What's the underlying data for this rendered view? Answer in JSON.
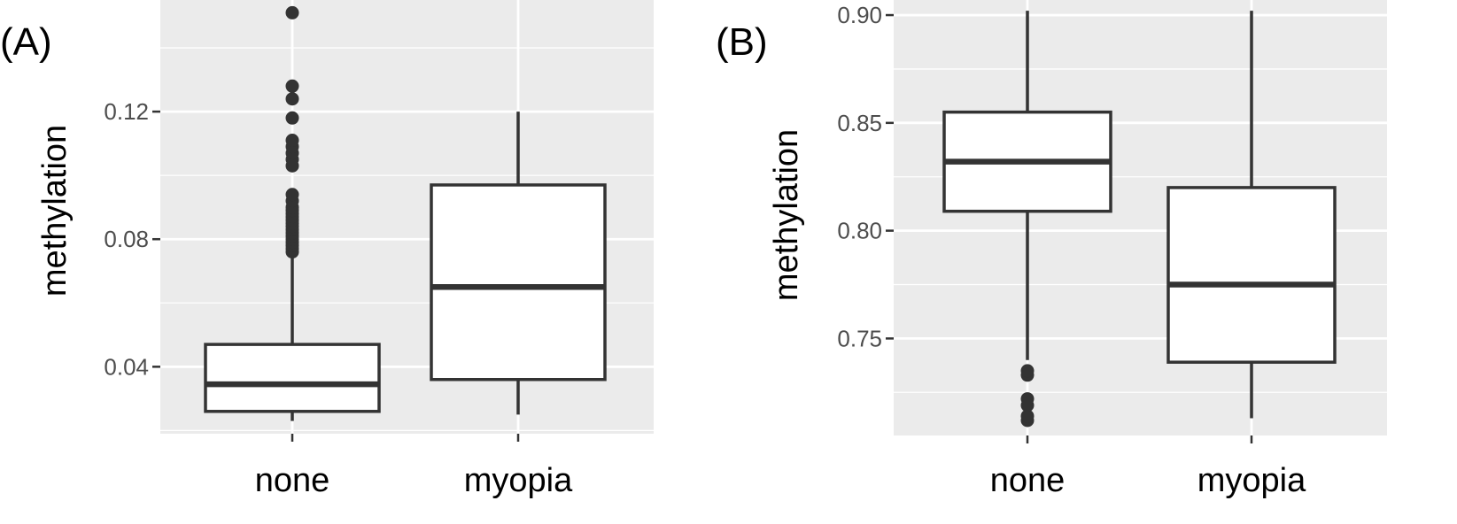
{
  "chart_data": [
    {
      "type": "box",
      "panel_label": "(A)",
      "ylabel": "methylation",
      "ylim": [
        0.019,
        0.155
      ],
      "yticks": [
        0.04,
        0.08,
        0.12
      ],
      "ytick_labels": [
        "0.04",
        "0.08",
        "0.12"
      ],
      "grid": true,
      "categories": [
        "none",
        "myopia"
      ],
      "boxes": [
        {
          "category": "none",
          "whisker_low": 0.023,
          "q1": 0.026,
          "median": 0.0345,
          "q3": 0.047,
          "whisker_high": 0.076,
          "outliers": [
            0.076,
            0.077,
            0.078,
            0.079,
            0.08,
            0.081,
            0.082,
            0.083,
            0.084,
            0.085,
            0.086,
            0.087,
            0.088,
            0.089,
            0.09,
            0.092,
            0.094,
            0.103,
            0.105,
            0.107,
            0.109,
            0.111,
            0.118,
            0.124,
            0.128,
            0.151
          ]
        },
        {
          "category": "myopia",
          "whisker_low": 0.025,
          "q1": 0.036,
          "median": 0.065,
          "q3": 0.097,
          "whisker_high": 0.12,
          "outliers": []
        }
      ]
    },
    {
      "type": "box",
      "panel_label": "(B)",
      "ylabel": "methylation",
      "ylim": [
        0.705,
        0.907
      ],
      "yticks": [
        0.75,
        0.8,
        0.85,
        0.9
      ],
      "ytick_labels": [
        "0.75",
        "0.80",
        "0.85",
        "0.90"
      ],
      "grid": true,
      "categories": [
        "none",
        "myopia"
      ],
      "boxes": [
        {
          "category": "none",
          "whisker_low": 0.74,
          "q1": 0.809,
          "median": 0.832,
          "q3": 0.855,
          "whisker_high": 0.902,
          "outliers": [
            0.712,
            0.714,
            0.719,
            0.722,
            0.733,
            0.735
          ]
        },
        {
          "category": "myopia",
          "whisker_low": 0.713,
          "q1": 0.739,
          "median": 0.775,
          "q3": 0.82,
          "whisker_high": 0.902,
          "outliers": []
        }
      ]
    }
  ]
}
